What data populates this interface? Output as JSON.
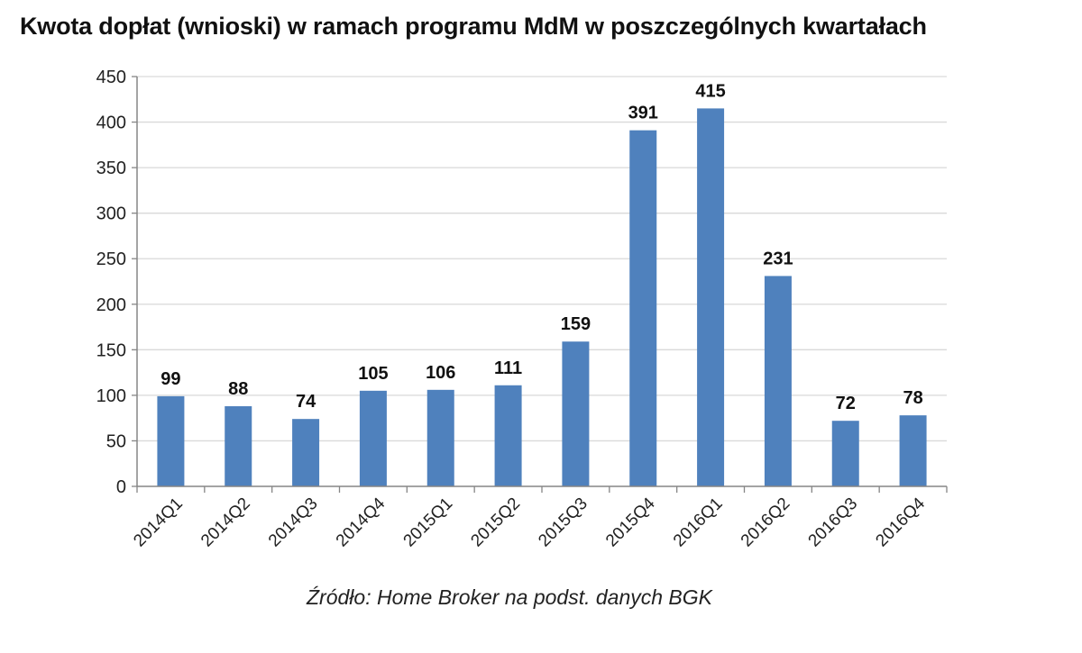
{
  "chart_data": {
    "type": "bar",
    "title": "Kwota dopłat (wnioski) w ramach programu MdM w poszczególnych kwartałach",
    "source": "Źródło: Home Broker na podst. danych BGK",
    "categories": [
      "2014Q1",
      "2014Q2",
      "2014Q3",
      "2014Q4",
      "2015Q1",
      "2015Q2",
      "2015Q3",
      "2015Q4",
      "2016Q1",
      "2016Q2",
      "2016Q3",
      "2016Q4"
    ],
    "values": [
      99,
      88,
      74,
      105,
      106,
      111,
      159,
      391,
      415,
      231,
      72,
      78
    ],
    "data_labels": [
      "99",
      "88",
      "74",
      "105",
      "106",
      "111",
      "159",
      "391",
      "415",
      "231",
      "72",
      "78"
    ],
    "y_ticks": [
      "0",
      "50",
      "100",
      "150",
      "200",
      "250",
      "300",
      "350",
      "400",
      "450"
    ],
    "ylim": [
      0,
      450
    ],
    "y_step": 50,
    "xlabel": "",
    "ylabel": "",
    "grid": true,
    "legend": "none",
    "bar_color": "#4f81bd",
    "grid_color": "#d9d9d9",
    "axis_color": "#868686"
  }
}
